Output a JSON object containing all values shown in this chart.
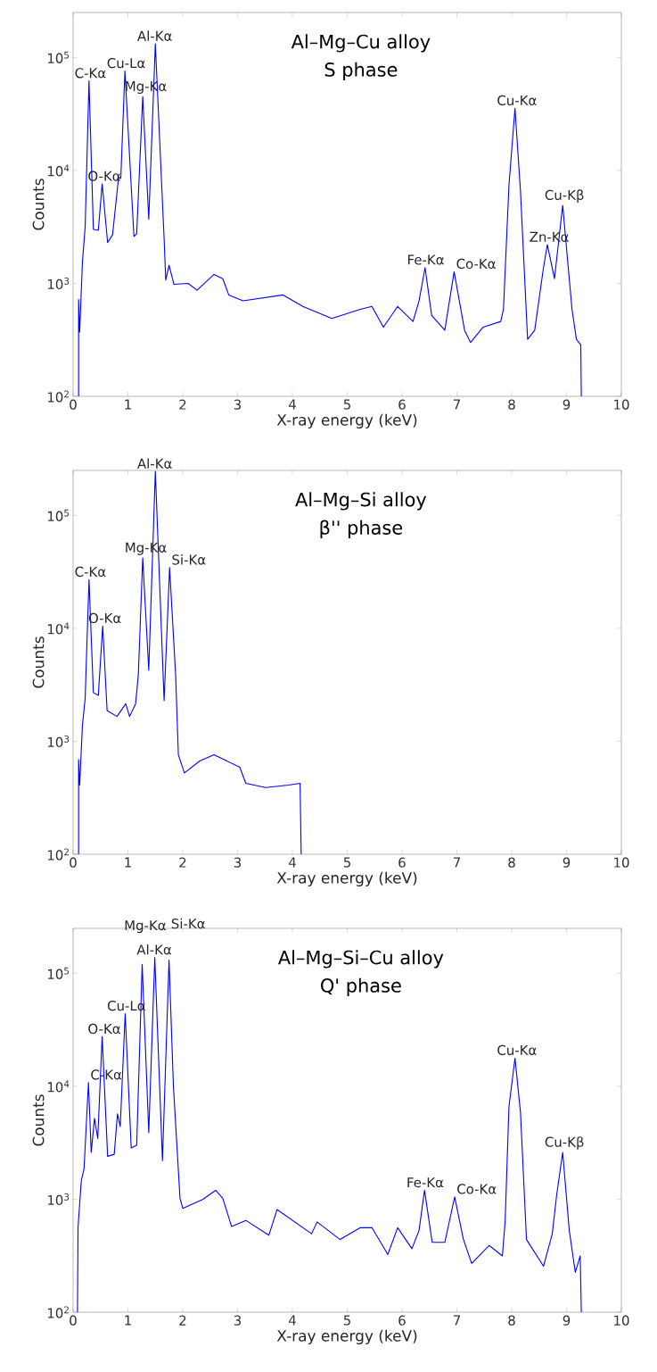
{
  "chart_data": [
    {
      "type": "line",
      "title": "Al–Mg–Cu alloy",
      "subtitle": "S phase",
      "xlabel": "X-ray energy (keV)",
      "ylabel": "Counts",
      "log": "y",
      "color": "#0000ff",
      "xlim": [
        0,
        10
      ],
      "ylim": [
        100,
        250000
      ],
      "xticks": [
        0,
        1,
        2,
        3,
        4,
        5,
        6,
        7,
        8,
        9,
        10
      ],
      "yticks": [
        {
          "value": 100,
          "label": "10$^{2}$"
        },
        {
          "value": 1000,
          "label": "10$^{3}$"
        },
        {
          "value": 10000,
          "label": "10$^{4}$"
        },
        {
          "value": 100000,
          "label": "10$^{5}$"
        }
      ],
      "x": [
        0.1,
        0.1,
        0.12,
        0.17,
        0.22,
        0.29,
        0.37,
        0.46,
        0.53,
        0.63,
        0.72,
        0.83,
        0.87,
        0.945,
        1.11,
        1.16,
        1.27,
        1.38,
        1.5,
        1.66,
        1.69,
        1.75,
        1.84,
        2.1,
        2.26,
        2.57,
        2.73,
        2.84,
        3.1,
        3.83,
        4.19,
        4.72,
        5.24,
        5.45,
        5.66,
        5.92,
        6.2,
        6.31,
        6.42,
        6.54,
        6.78,
        6.95,
        7.14,
        7.25,
        7.48,
        7.8,
        7.85,
        7.95,
        8.06,
        8.16,
        8.29,
        8.42,
        8.58,
        8.65,
        8.78,
        8.93,
        9.1,
        9.18,
        9.26,
        9.27
      ],
      "values": [
        100,
        720,
        370,
        1550,
        3160,
        62000,
        3000,
        2950,
        7600,
        2300,
        2700,
        8700,
        8500,
        76000,
        2600,
        2750,
        45000,
        3700,
        132000,
        2500,
        1070,
        1450,
        980,
        1000,
        870,
        1200,
        1100,
        790,
        700,
        790,
        625,
        490,
        590,
        625,
        410,
        625,
        460,
        700,
        1380,
        520,
        385,
        1270,
        385,
        300,
        410,
        460,
        590,
        7400,
        35500,
        6600,
        320,
        385,
        1380,
        2200,
        1100,
        4900,
        590,
        320,
        285,
        100
      ],
      "annotations": [
        {
          "text": "Al-Kα",
          "x": 1.5,
          "y": 132000
        },
        {
          "text": "C-Kα",
          "x": 0.29,
          "y": 62000
        },
        {
          "text": "Cu-Lα",
          "x": 0.945,
          "y": 76000
        },
        {
          "text": "O-Kα",
          "x": 0.53,
          "y": 7600
        },
        {
          "text": "Mg-Kα",
          "x": 1.27,
          "y": 45000
        },
        {
          "text": "Fe-Kα",
          "x": 6.42,
          "y": 1380
        },
        {
          "text": "Co-Kα",
          "x": 6.95,
          "y": 1270
        },
        {
          "text": "Cu-Kα",
          "x": 8.06,
          "y": 35500
        },
        {
          "text": "Cu-Kβ",
          "x": 8.93,
          "y": 4900
        },
        {
          "text": "Zn-Kα",
          "x": 8.65,
          "y": 2200
        }
      ]
    },
    {
      "type": "line",
      "title": "Al–Mg–Si alloy",
      "subtitle": "β'' phase",
      "xlabel": "X-ray energy (keV)",
      "ylabel": "Counts",
      "log": "y",
      "color": "#0000ff",
      "xlim": [
        0,
        10
      ],
      "ylim": [
        100,
        250000
      ],
      "xticks": [
        0,
        1,
        2,
        3,
        4,
        5,
        6,
        7,
        8,
        9,
        10
      ],
      "yticks": [
        {
          "value": 100,
          "label": "10$^{2}$"
        },
        {
          "value": 1000,
          "label": "10$^{3}$"
        },
        {
          "value": 10000,
          "label": "10$^{4}$"
        },
        {
          "value": 100000,
          "label": "10$^{5}$"
        }
      ],
      "x": [
        0.1,
        0.1,
        0.12,
        0.17,
        0.22,
        0.29,
        0.37,
        0.46,
        0.54,
        0.62,
        0.8,
        0.96,
        1.03,
        1.14,
        1.19,
        1.27,
        1.38,
        1.5,
        1.66,
        1.76,
        1.87,
        1.92,
        2.03,
        2.31,
        2.57,
        3.04,
        3.15,
        3.51,
        3.93,
        4.14,
        4.16
      ],
      "values": [
        100,
        690,
        410,
        1380,
        2400,
        27000,
        2700,
        2550,
        10500,
        1870,
        1660,
        2150,
        1660,
        2150,
        3900,
        42000,
        4250,
        245000,
        2300,
        34500,
        3900,
        760,
        525,
        670,
        760,
        590,
        425,
        390,
        410,
        425,
        100
      ],
      "annotations": [
        {
          "text": "Al-Kα",
          "x": 1.5,
          "y": 245000
        },
        {
          "text": "C-Kα",
          "x": 0.29,
          "y": 27000
        },
        {
          "text": "Mg-Kα",
          "x": 1.27,
          "y": 42000
        },
        {
          "text": "Si-Kα",
          "x": 1.76,
          "y": 34500
        },
        {
          "text": "O-Kα",
          "x": 0.54,
          "y": 10500
        }
      ]
    },
    {
      "type": "line",
      "title": "Al–Mg–Si–Cu alloy",
      "subtitle": "Q' phase",
      "xlabel": "X-ray energy (keV)",
      "ylabel": "Counts",
      "log": "y",
      "color": "#0000ff",
      "xlim": [
        0,
        10
      ],
      "ylim": [
        100,
        250000
      ],
      "xticks": [
        0,
        1,
        2,
        3,
        4,
        5,
        6,
        7,
        8,
        9,
        10
      ],
      "yticks": [
        {
          "value": 100,
          "label": "10$^{2}$"
        },
        {
          "value": 1000,
          "label": "10$^{3}$"
        },
        {
          "value": 10000,
          "label": "10$^{4}$"
        },
        {
          "value": 100000,
          "label": "10$^{5}$"
        }
      ],
      "x": [
        0.08,
        0.09,
        0.15,
        0.2,
        0.28,
        0.33,
        0.39,
        0.45,
        0.53,
        0.63,
        0.75,
        0.81,
        0.86,
        0.95,
        1.06,
        1.16,
        1.26,
        1.38,
        1.49,
        1.63,
        1.75,
        1.83,
        1.95,
        2.0,
        2.37,
        2.6,
        2.73,
        2.89,
        3.15,
        3.57,
        3.72,
        4.35,
        4.45,
        4.87,
        5.24,
        5.45,
        5.74,
        5.92,
        6.18,
        6.31,
        6.41,
        6.55,
        6.78,
        6.96,
        7.12,
        7.27,
        7.59,
        7.83,
        7.88,
        7.95,
        8.06,
        8.16,
        8.27,
        8.58,
        8.74,
        8.82,
        8.93,
        9.05,
        9.16,
        9.25,
        9.27
      ],
      "values": [
        100,
        560,
        1470,
        1870,
        10800,
        2600,
        5200,
        3450,
        27500,
        2400,
        2500,
        5700,
        4400,
        44000,
        2850,
        3000,
        120000,
        3900,
        138000,
        2200,
        131000,
        10000,
        1020,
        830,
        1000,
        1200,
        1020,
        575,
        650,
        480,
        810,
        495,
        630,
        440,
        560,
        560,
        325,
        560,
        365,
        530,
        1200,
        415,
        415,
        1050,
        440,
        270,
        390,
        315,
        630,
        6600,
        17800,
        5900,
        440,
        255,
        495,
        1090,
        2600,
        530,
        225,
        315,
        100
      ],
      "annotations": [
        {
          "text": "Al-Kα",
          "x": 1.49,
          "y": 138000
        },
        {
          "text": "Cu-Lα",
          "x": 0.95,
          "y": 44000
        },
        {
          "text": "C-Kα",
          "x": 0.28,
          "y": 10800
        },
        {
          "text": "O-Kα",
          "x": 0.53,
          "y": 27500
        },
        {
          "text": "Mg-Kα",
          "x": 1.26,
          "y": 120000
        },
        {
          "text": "Si-Kα",
          "x": 1.75,
          "y": 131000
        },
        {
          "text": "Fe-Kα",
          "x": 6.41,
          "y": 1200
        },
        {
          "text": "Co-Kα",
          "x": 6.96,
          "y": 1050
        },
        {
          "text": "Cu-Kα",
          "x": 8.06,
          "y": 17800
        },
        {
          "text": "Cu-Kβ",
          "x": 8.93,
          "y": 2600
        }
      ]
    }
  ]
}
